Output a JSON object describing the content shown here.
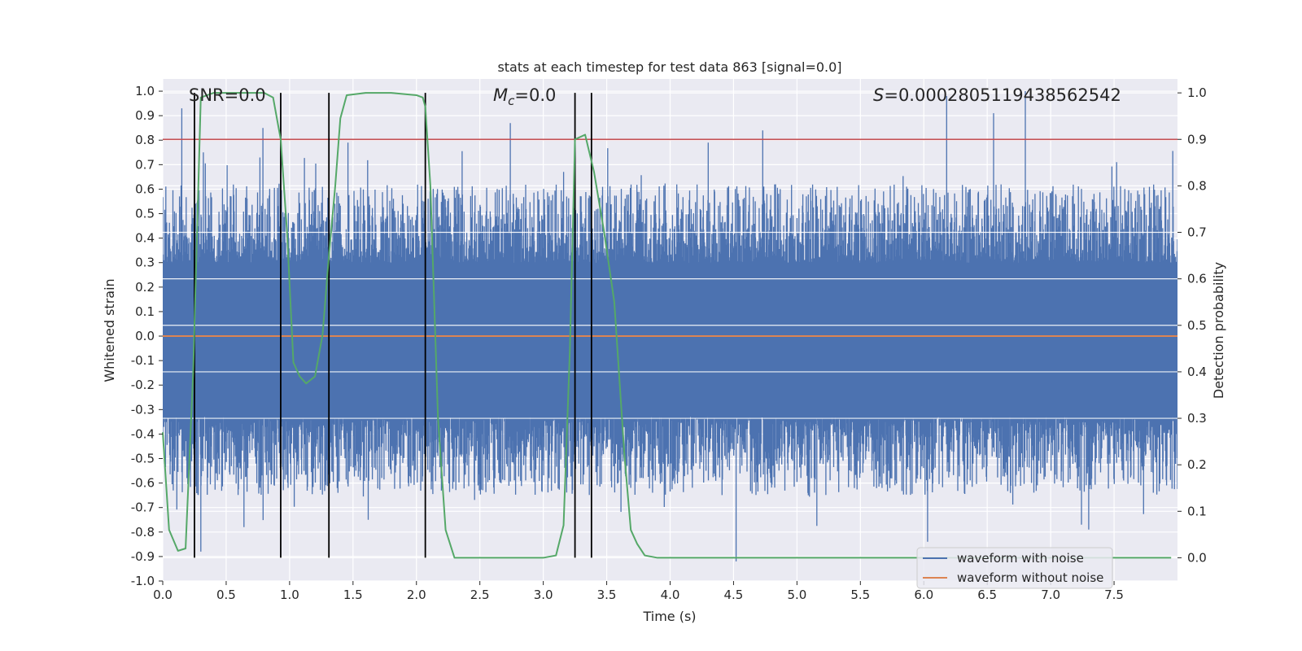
{
  "chart_data": {
    "type": "line",
    "title": "stats at each timestep for test data 863 [signal=0.0]",
    "xlabel": "Time (s)",
    "ylabel_left": "Whitened strain",
    "ylabel_right": "Detection probability",
    "xlim": [
      0.0,
      8.0
    ],
    "ylim_left": [
      -1.0,
      1.05
    ],
    "ylim_right": [
      -0.05,
      1.03
    ],
    "x_ticks": [
      0.0,
      0.5,
      1.0,
      1.5,
      2.0,
      2.5,
      3.0,
      3.5,
      4.0,
      4.5,
      5.0,
      5.5,
      6.0,
      6.5,
      7.0,
      7.5
    ],
    "x_tick_labels": [
      "0.0",
      "0.5",
      "1.0",
      "1.5",
      "2.0",
      "2.5",
      "3.0",
      "3.5",
      "4.0",
      "4.5",
      "5.0",
      "5.5",
      "6.0",
      "6.5",
      "7.0",
      "7.5"
    ],
    "y_left_ticks": [
      -1.0,
      -0.9,
      -0.8,
      -0.7,
      -0.6,
      -0.5,
      -0.4,
      -0.3,
      -0.2,
      -0.1,
      0.0,
      0.1,
      0.2,
      0.3,
      0.4,
      0.5,
      0.6,
      0.7,
      0.8,
      0.9,
      1.0
    ],
    "y_left_tick_labels": [
      "-1.0",
      "-0.9",
      "-0.8",
      "-0.7",
      "-0.6",
      "-0.5",
      "-0.4",
      "-0.3",
      "-0.2",
      "-0.1",
      "0.0",
      "0.1",
      "0.2",
      "0.3",
      "0.4",
      "0.5",
      "0.6",
      "0.7",
      "0.8",
      "0.9",
      "1.0"
    ],
    "y_right_ticks": [
      0.0,
      0.1,
      0.2,
      0.3,
      0.4,
      0.5,
      0.6,
      0.7,
      0.8,
      0.9,
      1.0
    ],
    "y_right_tick_labels": [
      "0.0",
      "0.1",
      "0.2",
      "0.3",
      "0.4",
      "0.5",
      "0.6",
      "0.7",
      "0.8",
      "0.9",
      "1.0"
    ],
    "annotations": {
      "snr": "SNR=0.0",
      "mc_symbol": "M",
      "mc_sub": "c",
      "mc_value": "=0.0",
      "s_symbol": "S",
      "s_value": "=0.0002805119438562542"
    },
    "threshold_right": 0.9,
    "vertical_lines_x": [
      0.25,
      0.93,
      1.31,
      2.07,
      3.25,
      3.38
    ],
    "series": [
      {
        "name": "waveform with noise",
        "axis": "left",
        "color": "#4c72b0",
        "note": "dense noisy strain; typical envelope about ±0.4, peaks near ±0.9",
        "envelope": {
          "body_high": 0.3,
          "body_low": -0.33,
          "peaks_high": [
            [
              0.15,
              0.93
            ],
            [
              0.32,
              0.75
            ],
            [
              0.79,
              0.85
            ],
            [
              1.46,
              0.79
            ],
            [
              2.74,
              0.87
            ],
            [
              4.3,
              0.79
            ],
            [
              4.73,
              0.84
            ],
            [
              6.18,
              0.98
            ],
            [
              6.55,
              0.91
            ],
            [
              6.8,
              1.0
            ],
            [
              7.52,
              0.71
            ]
          ],
          "peaks_low": [
            [
              0.3,
              -0.88
            ],
            [
              0.64,
              -0.78
            ],
            [
              1.62,
              -0.75
            ],
            [
              4.52,
              -0.92
            ],
            [
              6.03,
              -0.84
            ],
            [
              7.3,
              -0.79
            ]
          ]
        }
      },
      {
        "name": "waveform without noise",
        "axis": "left",
        "color": "#dd8452",
        "x": [
          0.0,
          8.0
        ],
        "y": [
          0.0,
          0.0
        ]
      },
      {
        "name": "detection probability",
        "axis": "right",
        "color": "#55a868",
        "x": [
          0.0,
          0.05,
          0.12,
          0.18,
          0.24,
          0.3,
          0.4,
          0.6,
          0.8,
          0.87,
          0.93,
          0.98,
          1.03,
          1.08,
          1.13,
          1.2,
          1.26,
          1.31,
          1.36,
          1.4,
          1.45,
          1.6,
          1.8,
          2.0,
          2.05,
          2.07,
          2.11,
          2.17,
          2.23,
          2.3,
          2.5,
          2.8,
          3.0,
          3.1,
          3.16,
          3.21,
          3.25,
          3.33,
          3.4,
          3.48,
          3.56,
          3.64,
          3.69,
          3.74,
          3.8,
          3.9,
          4.2,
          5.0,
          6.0,
          7.0,
          7.95
        ],
        "y": [
          0.27,
          0.06,
          0.015,
          0.02,
          0.4,
          0.99,
          1.0,
          1.0,
          1.0,
          0.99,
          0.9,
          0.7,
          0.42,
          0.39,
          0.375,
          0.39,
          0.48,
          0.65,
          0.8,
          0.945,
          0.995,
          1.0,
          1.0,
          0.995,
          0.99,
          0.97,
          0.8,
          0.3,
          0.06,
          0.0,
          0.0,
          0.0,
          0.0,
          0.005,
          0.07,
          0.45,
          0.9,
          0.91,
          0.83,
          0.7,
          0.55,
          0.22,
          0.06,
          0.03,
          0.005,
          0.0,
          0.0,
          0.0,
          0.0,
          0.0,
          0.0
        ]
      }
    ],
    "legend": {
      "placement": "bottom-right",
      "entries": [
        "waveform with noise",
        "waveform without noise"
      ]
    },
    "colors": {
      "axes_bg": "#eaeaf2",
      "grid": "#ffffff",
      "noise": "#4c72b0",
      "clean": "#dd8452",
      "prob": "#55a868",
      "threshold": "#c44e52",
      "vline": "#000000"
    }
  }
}
